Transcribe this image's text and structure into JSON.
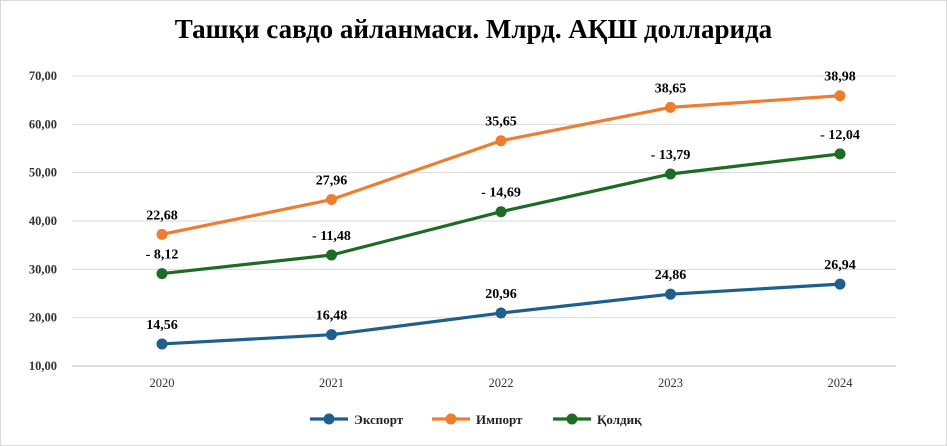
{
  "chart_data": {
    "type": "line",
    "title": "Ташқи савдо айланмаси. Млрд. АҚШ долларида",
    "xlabel": "",
    "ylabel": "",
    "categories": [
      "2020",
      "2021",
      "2022",
      "2023",
      "2024"
    ],
    "ylim": [
      10,
      70
    ],
    "yticks": [
      "10,00",
      "20,00",
      "30,00",
      "40,00",
      "50,00",
      "60,00",
      "70,00"
    ],
    "grid": true,
    "legend_position": "bottom",
    "series": [
      {
        "name": "Экспорт",
        "color": "#1f5f8b",
        "values": [
          14.56,
          16.48,
          20.96,
          24.86,
          26.94
        ],
        "labels": [
          "14,56",
          "16,48",
          "20,96",
          "24,86",
          "26,94"
        ]
      },
      {
        "name": "Импорт",
        "color": "#ed7d31",
        "values": [
          37.24,
          44.44,
          56.61,
          63.51,
          65.92
        ],
        "labels": [
          "22,68",
          "27,96",
          "35,65",
          "38,65",
          "38,98"
        ]
      },
      {
        "name": "Қолдиқ",
        "color": "#1e6b24",
        "values": [
          29.12,
          32.96,
          41.92,
          49.72,
          53.88
        ],
        "labels": [
          "- 8,12",
          "- 11,48",
          "- 14,69",
          "- 13,79",
          "- 12,04"
        ]
      }
    ]
  }
}
